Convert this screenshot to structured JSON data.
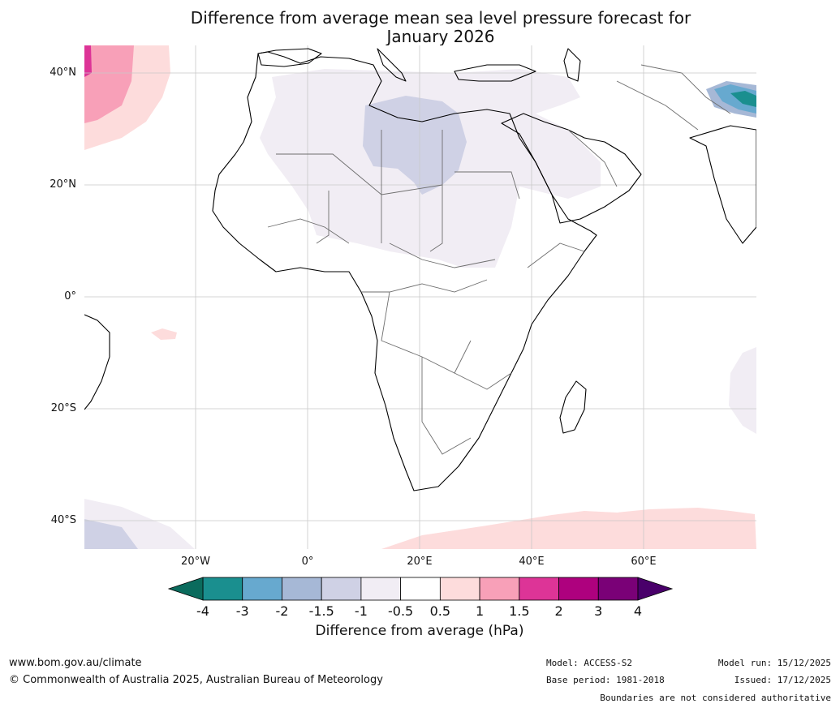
{
  "title_line1": "Difference from average mean sea level pressure forecast for",
  "title_line2": "January 2026",
  "map": {
    "lat_labels": [
      "40°N",
      "20°N",
      "0°",
      "20°S",
      "40°S"
    ],
    "lon_labels": [
      "20°W",
      "0°",
      "20°E",
      "40°E",
      "60°E"
    ]
  },
  "colorbar": {
    "ticks": [
      "-4",
      "-3",
      "-2",
      "-1.5",
      "-1",
      "-0.5",
      "0.5",
      "1",
      "1.5",
      "2",
      "3",
      "4"
    ],
    "colors": [
      "#1a8f8f",
      "#67a9cf",
      "#a6b8d6",
      "#cfd1e5",
      "#f1edf4",
      "#ffffff",
      "#fddcdc",
      "#f8a0b8",
      "#dd3497",
      "#ae017e",
      "#7a0177"
    ],
    "low_extend_color": "#0b6b5d",
    "high_extend_color": "#49006a",
    "label": "Difference from average (hPa)"
  },
  "footer": {
    "website": "www.bom.gov.au/climate",
    "copyright": "© Commonwealth of Australia 2025, Australian Bureau of Meteorology",
    "model": "Model: ACCESS-S2",
    "base_period": "Base period: 1981-2018",
    "model_run": "Model run: 15/12/2025",
    "issued": "Issued: 17/12/2025",
    "disclaimer": "Boundaries are not considered authoritative"
  }
}
